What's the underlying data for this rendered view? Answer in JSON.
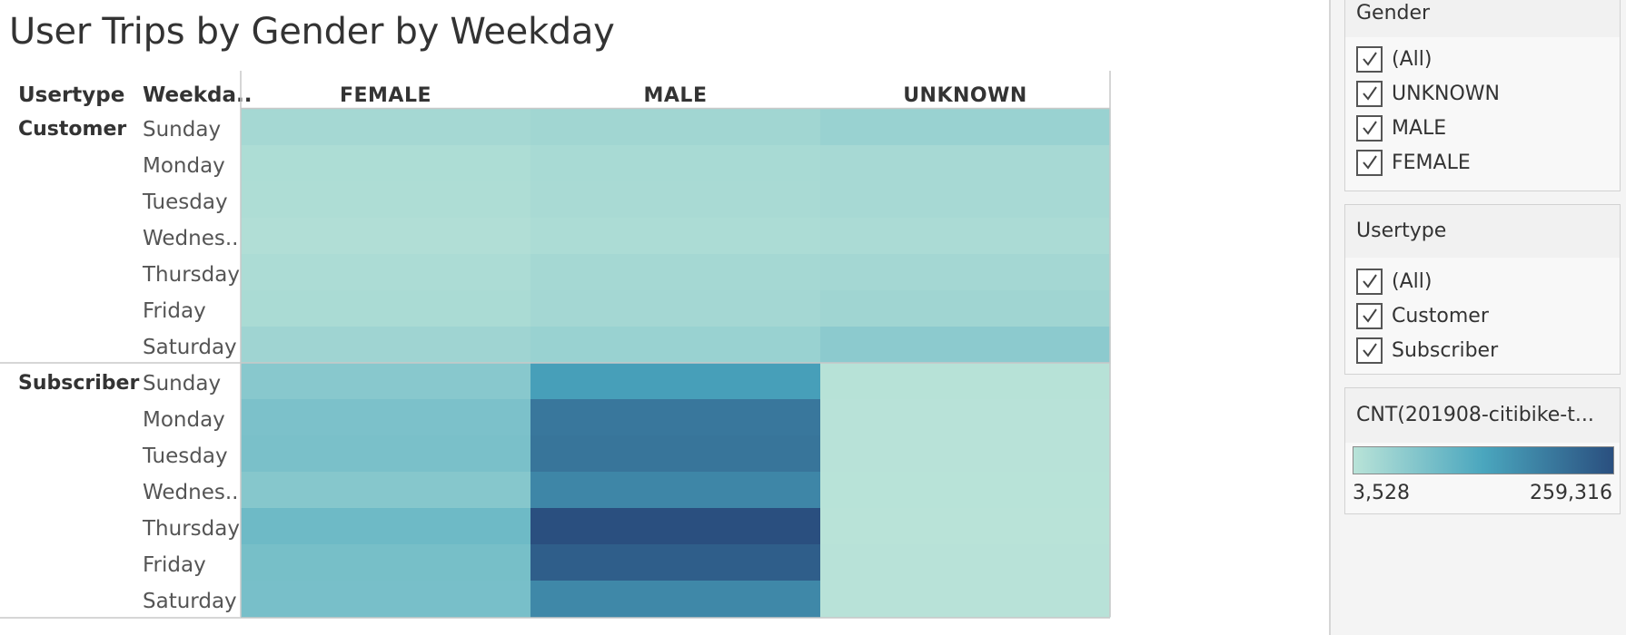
{
  "title": "User Trips by Gender by Weekday",
  "headers": {
    "usertype": "Usertype",
    "weekday": "Weekda.."
  },
  "chart_data": {
    "type": "heatmap",
    "title": "User Trips by Gender by Weekday",
    "columns": [
      "FEMALE",
      "MALE",
      "UNKNOWN"
    ],
    "groups": [
      {
        "usertype": "Customer",
        "rows": [
          {
            "weekday": "Sunday",
            "values": [
              27000,
              31000,
              40000
            ]
          },
          {
            "weekday": "Monday",
            "values": [
              17000,
              23000,
              24000
            ]
          },
          {
            "weekday": "Tuesday",
            "values": [
              16000,
              22000,
              24000
            ]
          },
          {
            "weekday": "Wednes..",
            "values": [
              13000,
              18000,
              20000
            ]
          },
          {
            "weekday": "Thursday",
            "values": [
              19000,
              26000,
              28000
            ]
          },
          {
            "weekday": "Friday",
            "values": [
              21000,
              28000,
              32000
            ]
          },
          {
            "weekday": "Saturday",
            "values": [
              34000,
              40000,
              55000
            ]
          }
        ]
      },
      {
        "usertype": "Subscriber",
        "rows": [
          {
            "weekday": "Sunday",
            "values": [
              60000,
              142000,
              6000
            ]
          },
          {
            "weekday": "Monday",
            "values": [
              74000,
              201000,
              5000
            ]
          },
          {
            "weekday": "Tuesday",
            "values": [
              76000,
              204000,
              5000
            ]
          },
          {
            "weekday": "Wednes..",
            "values": [
              62000,
              178000,
              4500
            ]
          },
          {
            "weekday": "Thursday",
            "values": [
              90000,
              259316,
              3528
            ]
          },
          {
            "weekday": "Friday",
            "values": [
              80000,
              238000,
              5000
            ]
          },
          {
            "weekday": "Saturday",
            "values": [
              78000,
              176000,
              5000
            ]
          }
        ]
      }
    ],
    "color_scale": {
      "min": 3528,
      "max": 259316,
      "colors": [
        "#b9e3d8",
        "#4aa6be",
        "#2a4f7f"
      ]
    },
    "legend_placement": "right"
  },
  "filters": {
    "gender": {
      "title": "Gender",
      "items": [
        {
          "label": "(All)",
          "checked": true
        },
        {
          "label": "UNKNOWN",
          "checked": true
        },
        {
          "label": "MALE",
          "checked": true
        },
        {
          "label": "FEMALE",
          "checked": true
        }
      ]
    },
    "usertype": {
      "title": "Usertype",
      "items": [
        {
          "label": "(All)",
          "checked": true
        },
        {
          "label": "Customer",
          "checked": true
        },
        {
          "label": "Subscriber",
          "checked": true
        }
      ]
    }
  },
  "legend": {
    "title": "CNT(201908-citibike-t...",
    "min_label": "3,528",
    "max_label": "259,316"
  }
}
